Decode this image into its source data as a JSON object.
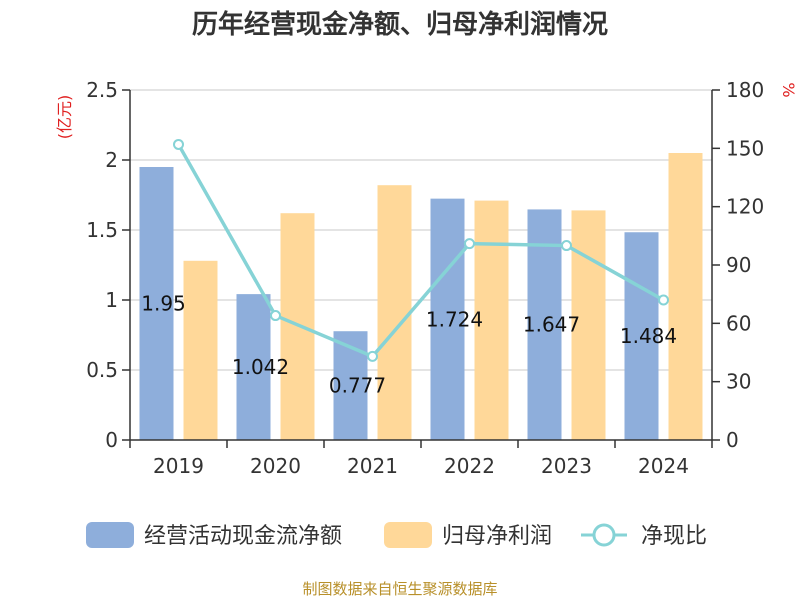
{
  "chart_data": {
    "type": "bar",
    "title": "历年经营现金净额、归母净利润情况",
    "categories": [
      "2019",
      "2020",
      "2021",
      "2022",
      "2023",
      "2024"
    ],
    "series": [
      {
        "name": "经营活动现金流净额",
        "type": "bar",
        "axis": "left",
        "color": "#8eaedb",
        "values": [
          1.95,
          1.042,
          0.777,
          1.724,
          1.647,
          1.484
        ]
      },
      {
        "name": "归母净利润",
        "type": "bar",
        "axis": "left",
        "color": "#ffd899",
        "values": [
          1.28,
          1.62,
          1.82,
          1.71,
          1.64,
          2.05
        ]
      },
      {
        "name": "净现比",
        "type": "line",
        "axis": "right",
        "color": "#86d3d6",
        "values": [
          152,
          64,
          43,
          101,
          100,
          72
        ]
      }
    ],
    "data_labels": [
      "1.95",
      "1.042",
      "0.777",
      "1.724",
      "1.647",
      "1.484"
    ],
    "y_left": {
      "unit": "(亿元)",
      "ylim": [
        0,
        2.5
      ],
      "ticks": [
        "0",
        "0.5",
        "1",
        "1.5",
        "2",
        "2.5"
      ]
    },
    "y_right": {
      "unit": "%",
      "ylim": [
        0,
        180
      ],
      "ticks": [
        "0",
        "30",
        "60",
        "90",
        "120",
        "150",
        "180"
      ]
    },
    "grid": true,
    "legend_position": "bottom",
    "source": "制图数据来自恒生聚源数据库"
  }
}
